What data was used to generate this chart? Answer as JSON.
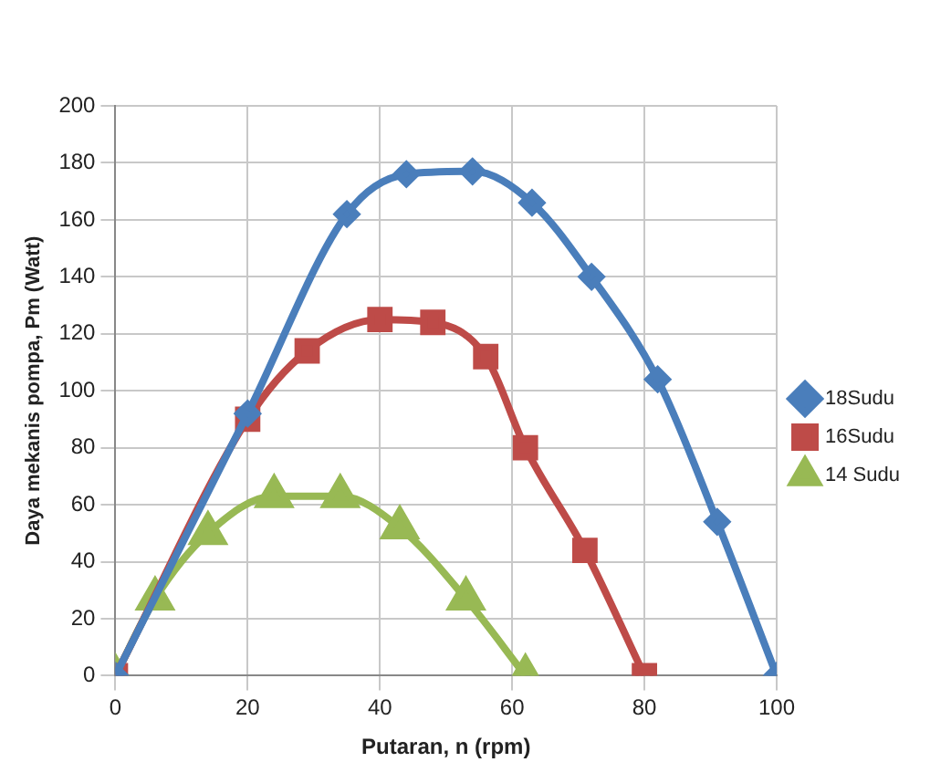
{
  "chart_data": {
    "type": "line",
    "xlabel": "Putaran, n (rpm)",
    "ylabel": "Daya mekanis pompa, Pm (Watt)",
    "xlim": [
      0,
      100
    ],
    "xticks": [
      0,
      20,
      40,
      60,
      80,
      100
    ],
    "ylim": [
      0,
      200
    ],
    "yticks": [
      0,
      20,
      40,
      60,
      80,
      100,
      120,
      140,
      160,
      180,
      200
    ],
    "grid": true,
    "legend": "right",
    "series": [
      {
        "name": "18Sudu",
        "color": "#4a7ebb",
        "marker": "diamond",
        "x": [
          0,
          20,
          35,
          44,
          54,
          63,
          72,
          82,
          91,
          100
        ],
        "values": [
          0,
          92,
          162,
          176,
          177,
          166,
          140,
          104,
          54,
          0
        ]
      },
      {
        "name": "16Sudu",
        "color": "#be4b48",
        "marker": "square",
        "x": [
          0,
          20,
          29,
          40,
          48,
          56,
          62,
          71,
          80
        ],
        "values": [
          0,
          90,
          114,
          125,
          124,
          112,
          80,
          44,
          0
        ]
      },
      {
        "name": "14 Sudu",
        "color": "#98b954",
        "marker": "triangle",
        "x": [
          0,
          6,
          14,
          24,
          34,
          43,
          53,
          62
        ],
        "values": [
          0,
          27,
          50,
          63,
          63,
          52,
          27,
          0
        ]
      }
    ]
  }
}
